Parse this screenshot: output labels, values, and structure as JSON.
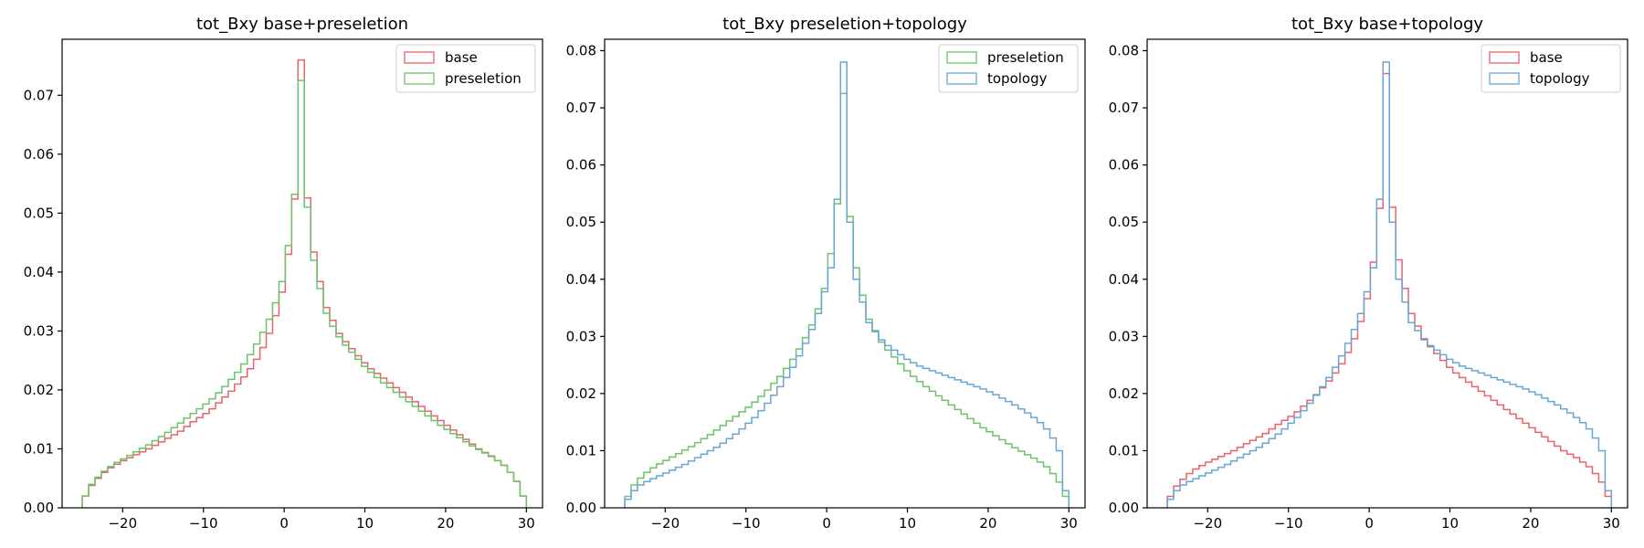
{
  "colors": {
    "base": "#e8636b",
    "preseletion": "#6cc36a",
    "topology": "#6aa6d2"
  },
  "chart_data": [
    {
      "type": "histogram-step",
      "title": "tot_Bxy base+preseletion",
      "xlabel": "",
      "ylabel": "",
      "xlim": [
        -27.5,
        32
      ],
      "ylim": [
        0,
        0.0795
      ],
      "xticks": [
        -20,
        -10,
        0,
        10,
        20,
        30
      ],
      "yticks": [
        0.0,
        0.01,
        0.02,
        0.03,
        0.04,
        0.05,
        0.06,
        0.07
      ],
      "ytick_labels": [
        "0.00",
        "0.01",
        "0.02",
        "0.03",
        "0.04",
        "0.05",
        "0.06",
        "0.07"
      ],
      "xtick_labels": [
        "−20",
        "−10",
        "0",
        "10",
        "20",
        "30"
      ],
      "bins": [
        -25,
        30,
        70
      ],
      "legend": "top-right",
      "series": [
        {
          "name": "base",
          "color_key": "base",
          "values": [
            0.002,
            0.0038,
            0.005,
            0.006,
            0.0068,
            0.0074,
            0.008,
            0.0085,
            0.009,
            0.0095,
            0.01,
            0.0106,
            0.0112,
            0.0118,
            0.0124,
            0.013,
            0.0138,
            0.0146,
            0.0153,
            0.016,
            0.0168,
            0.0178,
            0.0188,
            0.0198,
            0.021,
            0.0222,
            0.0236,
            0.0252,
            0.0272,
            0.0296,
            0.0326,
            0.0366,
            0.043,
            0.0524,
            0.076,
            0.0526,
            0.0434,
            0.0384,
            0.034,
            0.0318,
            0.0296,
            0.0282,
            0.027,
            0.0258,
            0.0246,
            0.0236,
            0.0228,
            0.022,
            0.0212,
            0.0204,
            0.0196,
            0.0188,
            0.018,
            0.0172,
            0.0164,
            0.0156,
            0.0148,
            0.014,
            0.0132,
            0.0124,
            0.0116,
            0.0108,
            0.01,
            0.0094,
            0.0088,
            0.008,
            0.0072,
            0.006,
            0.0045,
            0.002
          ]
        },
        {
          "name": "preseletion",
          "color_key": "preseletion",
          "values": [
            0.002,
            0.004,
            0.0052,
            0.0062,
            0.007,
            0.0077,
            0.0083,
            0.0089,
            0.0095,
            0.0101,
            0.0107,
            0.0114,
            0.0121,
            0.0128,
            0.0136,
            0.0144,
            0.0152,
            0.016,
            0.0168,
            0.0176,
            0.0185,
            0.0195,
            0.0206,
            0.0218,
            0.023,
            0.0244,
            0.026,
            0.0278,
            0.0298,
            0.032,
            0.0348,
            0.0384,
            0.0445,
            0.0532,
            0.0725,
            0.051,
            0.042,
            0.0372,
            0.033,
            0.0308,
            0.029,
            0.0276,
            0.0264,
            0.0252,
            0.024,
            0.023,
            0.0221,
            0.0212,
            0.0204,
            0.0196,
            0.0188,
            0.018,
            0.0172,
            0.0164,
            0.0156,
            0.0148,
            0.014,
            0.0133,
            0.0126,
            0.0119,
            0.0112,
            0.0105,
            0.0099,
            0.0093,
            0.0087,
            0.008,
            0.0072,
            0.006,
            0.0045,
            0.002
          ]
        }
      ]
    },
    {
      "type": "histogram-step",
      "title": "tot_Bxy preseletion+topology",
      "xlabel": "",
      "ylabel": "",
      "xlim": [
        -27.5,
        32
      ],
      "ylim": [
        0,
        0.082
      ],
      "xticks": [
        -20,
        -10,
        0,
        10,
        20,
        30
      ],
      "yticks": [
        0.0,
        0.01,
        0.02,
        0.03,
        0.04,
        0.05,
        0.06,
        0.07,
        0.08
      ],
      "ytick_labels": [
        "0.00",
        "0.01",
        "0.02",
        "0.03",
        "0.04",
        "0.05",
        "0.06",
        "0.07",
        "0.08"
      ],
      "xtick_labels": [
        "−20",
        "−10",
        "0",
        "10",
        "20",
        "30"
      ],
      "bins": [
        -25,
        30,
        70
      ],
      "legend": "top-right",
      "series": [
        {
          "name": "preseletion",
          "color_key": "preseletion",
          "values": [
            0.002,
            0.004,
            0.0052,
            0.0062,
            0.007,
            0.0077,
            0.0083,
            0.0089,
            0.0095,
            0.0101,
            0.0107,
            0.0114,
            0.0121,
            0.0128,
            0.0136,
            0.0144,
            0.0152,
            0.016,
            0.0168,
            0.0176,
            0.0185,
            0.0195,
            0.0206,
            0.0218,
            0.023,
            0.0244,
            0.026,
            0.0278,
            0.0298,
            0.032,
            0.0348,
            0.0384,
            0.0445,
            0.0532,
            0.0725,
            0.051,
            0.042,
            0.0372,
            0.033,
            0.0308,
            0.029,
            0.0276,
            0.0264,
            0.0252,
            0.024,
            0.023,
            0.0221,
            0.0212,
            0.0204,
            0.0196,
            0.0188,
            0.018,
            0.0172,
            0.0164,
            0.0156,
            0.0148,
            0.014,
            0.0133,
            0.0126,
            0.0119,
            0.0112,
            0.0105,
            0.0099,
            0.0093,
            0.0087,
            0.008,
            0.0072,
            0.006,
            0.0045,
            0.002
          ]
        },
        {
          "name": "topology",
          "color_key": "topology",
          "values": [
            0.0015,
            0.003,
            0.004,
            0.0046,
            0.0051,
            0.0056,
            0.0061,
            0.0066,
            0.0071,
            0.0076,
            0.0082,
            0.0088,
            0.0094,
            0.01,
            0.0106,
            0.0113,
            0.0121,
            0.0129,
            0.0138,
            0.0148,
            0.0158,
            0.017,
            0.0183,
            0.0197,
            0.0212,
            0.0228,
            0.0246,
            0.0266,
            0.0288,
            0.0312,
            0.034,
            0.0378,
            0.042,
            0.054,
            0.078,
            0.05,
            0.04,
            0.036,
            0.0324,
            0.031,
            0.0294,
            0.0284,
            0.0276,
            0.0268,
            0.026,
            0.0254,
            0.0248,
            0.0244,
            0.024,
            0.0236,
            0.0232,
            0.0228,
            0.0224,
            0.022,
            0.0216,
            0.0212,
            0.0208,
            0.0203,
            0.0198,
            0.0192,
            0.0186,
            0.018,
            0.0173,
            0.0166,
            0.0158,
            0.0149,
            0.0138,
            0.0122,
            0.01,
            0.003
          ]
        }
      ]
    },
    {
      "type": "histogram-step",
      "title": "tot_Bxy base+topology",
      "xlabel": "",
      "ylabel": "",
      "xlim": [
        -27.5,
        32
      ],
      "ylim": [
        0,
        0.082
      ],
      "xticks": [
        -20,
        -10,
        0,
        10,
        20,
        30
      ],
      "yticks": [
        0.0,
        0.01,
        0.02,
        0.03,
        0.04,
        0.05,
        0.06,
        0.07,
        0.08
      ],
      "ytick_labels": [
        "0.00",
        "0.01",
        "0.02",
        "0.03",
        "0.04",
        "0.05",
        "0.06",
        "0.07",
        "0.08"
      ],
      "xtick_labels": [
        "−20",
        "−10",
        "0",
        "10",
        "20",
        "30"
      ],
      "bins": [
        -25,
        30,
        70
      ],
      "legend": "top-right",
      "series": [
        {
          "name": "base",
          "color_key": "base",
          "values": [
            0.002,
            0.0038,
            0.005,
            0.006,
            0.0068,
            0.0074,
            0.008,
            0.0085,
            0.009,
            0.0095,
            0.01,
            0.0106,
            0.0112,
            0.0118,
            0.0124,
            0.013,
            0.0138,
            0.0146,
            0.0153,
            0.016,
            0.0168,
            0.0178,
            0.0188,
            0.0198,
            0.021,
            0.0222,
            0.0236,
            0.0252,
            0.0272,
            0.0296,
            0.0326,
            0.0366,
            0.043,
            0.0524,
            0.076,
            0.0526,
            0.0434,
            0.0384,
            0.034,
            0.0318,
            0.0296,
            0.0282,
            0.027,
            0.0258,
            0.0246,
            0.0236,
            0.0228,
            0.022,
            0.0212,
            0.0204,
            0.0196,
            0.0188,
            0.018,
            0.0172,
            0.0164,
            0.0156,
            0.0148,
            0.014,
            0.0132,
            0.0124,
            0.0116,
            0.0108,
            0.01,
            0.0094,
            0.0088,
            0.008,
            0.0072,
            0.006,
            0.0045,
            0.002
          ]
        },
        {
          "name": "topology",
          "color_key": "topology",
          "values": [
            0.0015,
            0.003,
            0.004,
            0.0046,
            0.0051,
            0.0056,
            0.0061,
            0.0066,
            0.0071,
            0.0076,
            0.0082,
            0.0088,
            0.0094,
            0.01,
            0.0106,
            0.0113,
            0.0121,
            0.0129,
            0.0138,
            0.0148,
            0.0158,
            0.017,
            0.0183,
            0.0197,
            0.0212,
            0.0228,
            0.0246,
            0.0266,
            0.0288,
            0.0312,
            0.034,
            0.0378,
            0.042,
            0.054,
            0.078,
            0.05,
            0.04,
            0.036,
            0.0324,
            0.031,
            0.0294,
            0.0284,
            0.0276,
            0.0268,
            0.026,
            0.0254,
            0.0248,
            0.0244,
            0.024,
            0.0236,
            0.0232,
            0.0228,
            0.0224,
            0.022,
            0.0216,
            0.0212,
            0.0208,
            0.0203,
            0.0198,
            0.0192,
            0.0186,
            0.018,
            0.0173,
            0.0166,
            0.0158,
            0.0149,
            0.0138,
            0.0122,
            0.01,
            0.003
          ]
        }
      ]
    }
  ]
}
